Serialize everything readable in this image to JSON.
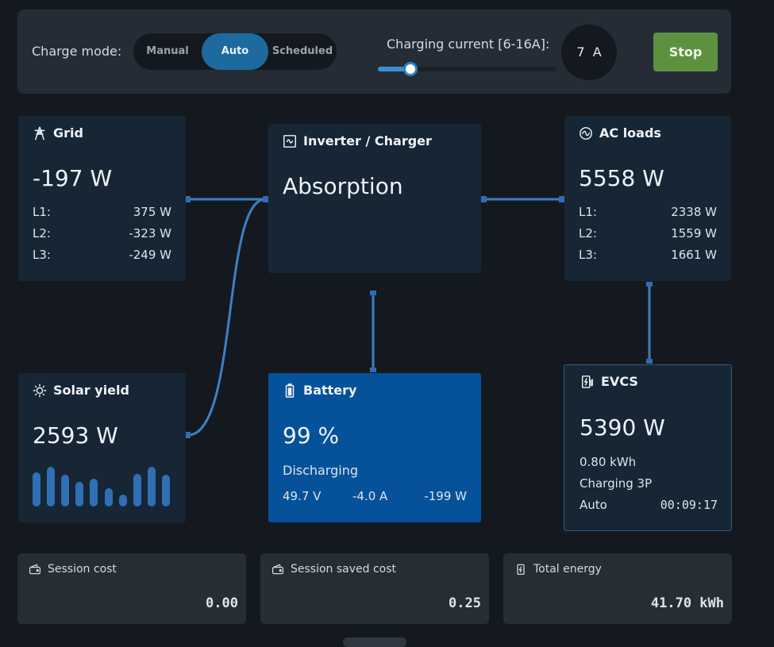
{
  "colors": {
    "accent": "#1c6a9e",
    "stop": "#5d9140",
    "battery": "#05529a",
    "panel": "#172634",
    "line": "#3e7fc0"
  },
  "control": {
    "charge_mode_label": "Charge mode:",
    "modes": [
      "Manual",
      "Auto",
      "Scheduled"
    ],
    "selected_mode": "Auto",
    "current_label": "Charging current [6-16A]:",
    "current_value": "7",
    "current_unit": "A",
    "current_min": 6,
    "current_max": 16,
    "current_setting": 7,
    "stop_label": "Stop"
  },
  "grid": {
    "icon": "pylon-icon",
    "title": "Grid",
    "power": "-197 W",
    "phases": [
      {
        "label": "L1:",
        "value": "375 W"
      },
      {
        "label": "L2:",
        "value": "-323 W"
      },
      {
        "label": "L3:",
        "value": "-249 W"
      }
    ]
  },
  "inverter": {
    "icon": "inverter-icon",
    "title": "Inverter / Charger",
    "state": "Absorption"
  },
  "ac_loads": {
    "icon": "ac-wave-icon",
    "title": "AC loads",
    "power": "5558 W",
    "phases": [
      {
        "label": "L1:",
        "value": "2338 W"
      },
      {
        "label": "L2:",
        "value": "1559 W"
      },
      {
        "label": "L3:",
        "value": "1661 W"
      }
    ]
  },
  "solar": {
    "icon": "sun-icon",
    "title": "Solar yield",
    "power": "2593 W",
    "history": [
      0.85,
      1.0,
      0.8,
      0.62,
      0.7,
      0.45,
      0.3,
      0.82,
      1.0,
      0.8
    ]
  },
  "battery": {
    "icon": "battery-icon",
    "title": "Battery",
    "soc": "99 %",
    "state": "Discharging",
    "voltage": "49.7 V",
    "current": "-4.0 A",
    "power": "-199 W"
  },
  "evcs": {
    "icon": "ev-charger-icon",
    "title": "EVCS",
    "power": "5390 W",
    "energy": "0.80 kWh",
    "status": "Charging 3P",
    "mode": "Auto",
    "time": "00:09:17"
  },
  "cards": [
    {
      "icon": "wallet-icon",
      "title": "Session cost",
      "value": "0.00"
    },
    {
      "icon": "wallet-icon",
      "title": "Session saved cost",
      "value": "0.25"
    },
    {
      "icon": "energy-icon",
      "title": "Total energy",
      "value": "41.70 kWh"
    }
  ]
}
